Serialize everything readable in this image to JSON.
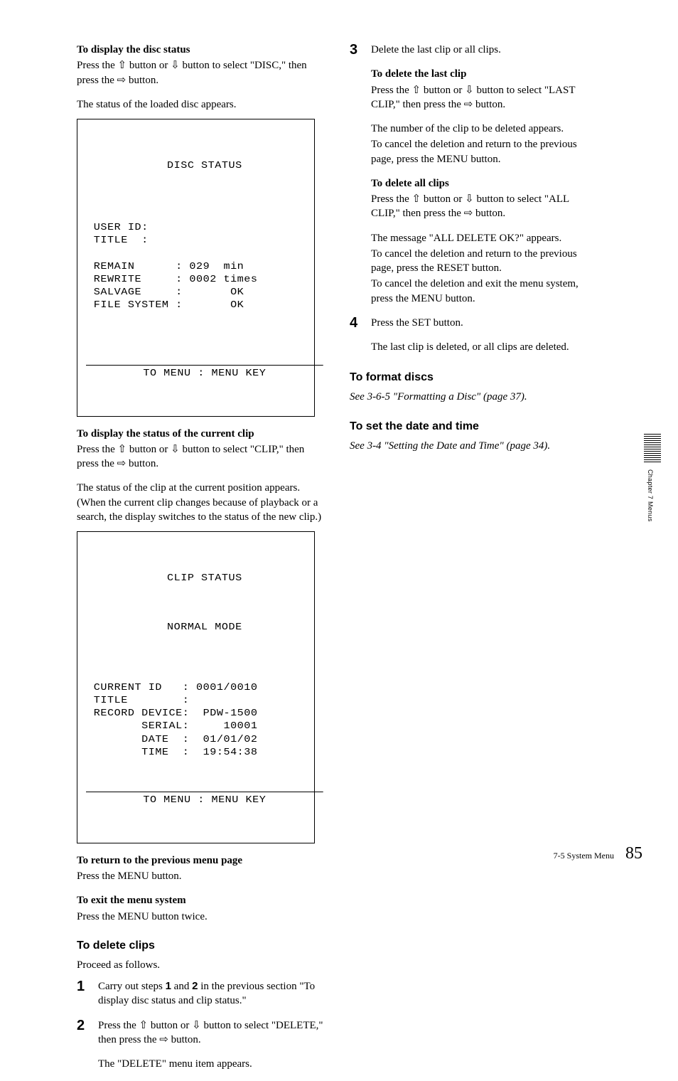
{
  "left": {
    "h_disc": "To display the disc status",
    "disc_p1a": "Press the ",
    "disc_p1b": " button or ",
    "disc_p1c": " button to select \"DISC,\" then press the ",
    "disc_p1d": " button.",
    "disc_p2": "The status of the loaded disc appears.",
    "screen1": {
      "title": "DISC STATUS",
      "l1": "USER ID:",
      "l2": "TITLE  :",
      "l3": "REMAIN      : 029  min",
      "l4": "REWRITE     : 0002 times",
      "l5": "SALVAGE     :       OK",
      "l6": "FILE SYSTEM :       OK",
      "footer": "TO MENU : MENU KEY"
    },
    "h_clip": "To display the status of the current clip",
    "clip_p1a": "Press the ",
    "clip_p1b": " button or ",
    "clip_p1c": " button to select \"CLIP,\" then press the ",
    "clip_p1d": " button.",
    "clip_p2": "The status of the clip at the current position appears. (When the current clip changes because of playback or a search, the display switches to the status of the new clip.)",
    "screen2": {
      "title": "CLIP STATUS",
      "sub": "NORMAL MODE",
      "l1": "CURRENT ID   : 0001/0010",
      "l2": "TITLE        :",
      "l3": "RECORD DEVICE:  PDW-1500",
      "l4": "       SERIAL:     10001",
      "l5": "       DATE  :  01/01/02",
      "l6": "       TIME  :  19:54:38",
      "footer": "TO MENU : MENU KEY"
    },
    "h_return": "To return to the previous menu page",
    "return_p": "Press the MENU button.",
    "h_exit": "To exit the menu system",
    "exit_p": "Press the MENU button twice.",
    "h_delete": "To delete clips",
    "delete_intro": "Proceed as follows.",
    "step1a": "Carry out steps ",
    "step1_n1": "1",
    "step1b": " and ",
    "step1_n2": "2",
    "step1c": " in the previous section \"To display disc status and clip status.\"",
    "step2a": "Press the ",
    "step2b": " button or ",
    "step2c": " button to select \"DELETE,\" then press the ",
    "step2d": " button.",
    "step2e": "The \"DELETE\" menu item appears."
  },
  "right": {
    "step3a": "Delete the last clip or all clips.",
    "h_last": "To delete the last clip",
    "last_p1a": "Press the ",
    "last_p1b": " button or ",
    "last_p1c": " button to select \"LAST CLIP,\" then press the ",
    "last_p1d": " button.",
    "last_p2": "The number of the clip to be deleted appears.",
    "last_p3": "To cancel the deletion and return to the previous page, press the MENU button.",
    "h_all": "To delete all clips",
    "all_p1a": "Press the ",
    "all_p1b": " button or ",
    "all_p1c": " button to select \"ALL CLIP,\" then press the ",
    "all_p1d": " button.",
    "all_p2": "The message \"ALL DELETE OK?\" appears.",
    "all_p3": "To cancel the deletion and return to the previous page, press the RESET button.",
    "all_p4": "To cancel the deletion and exit the menu system, press the MENU button.",
    "step4a": "Press the SET button.",
    "step4b": "The last clip is deleted, or all clips are deleted.",
    "h_format": "To format discs",
    "format_p": "See 3-6-5 \"Formatting a Disc\" (page 37).",
    "h_date": "To set the date and time",
    "date_p": "See 3-4 \"Setting the Date and Time\" (page 34)."
  },
  "icons": {
    "up": "⇧",
    "down": "⇩",
    "right": "⇨"
  },
  "sidebar": "Chapter 7  Menus",
  "footer": {
    "section": "7-5 System Menu",
    "page": "85"
  }
}
